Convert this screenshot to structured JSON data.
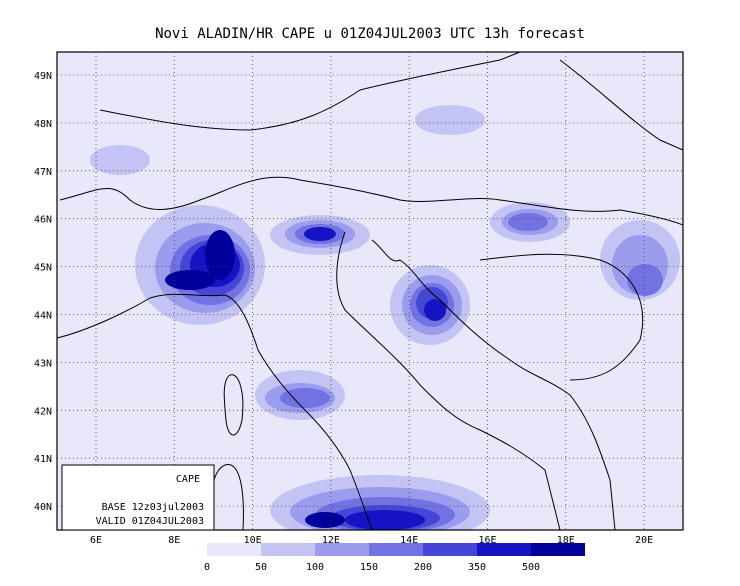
{
  "title": "Novi ALADIN/HR CAPE u 01Z04JUL2003 UTC 13h forecast",
  "lat_labels": [
    "49N",
    "48N",
    "47N",
    "46N",
    "45N",
    "44N",
    "43N",
    "42N",
    "41N",
    "40N"
  ],
  "lon_labels": [
    "6E",
    "8E",
    "10E",
    "12E",
    "14E",
    "16E",
    "18E",
    "20E"
  ],
  "info_box": {
    "field": "CAPE",
    "base": "BASE 12z03jul2003",
    "valid": "VALID 01Z04JUL2003"
  },
  "colorbar": {
    "labels": [
      "0",
      "50",
      "100",
      "150",
      "200",
      "350",
      "500"
    ],
    "colors": [
      "#e8e8fa",
      "#c4c4f4",
      "#9c9cee",
      "#7272e2",
      "#4646d6",
      "#1414c4",
      "#00009a"
    ]
  }
}
